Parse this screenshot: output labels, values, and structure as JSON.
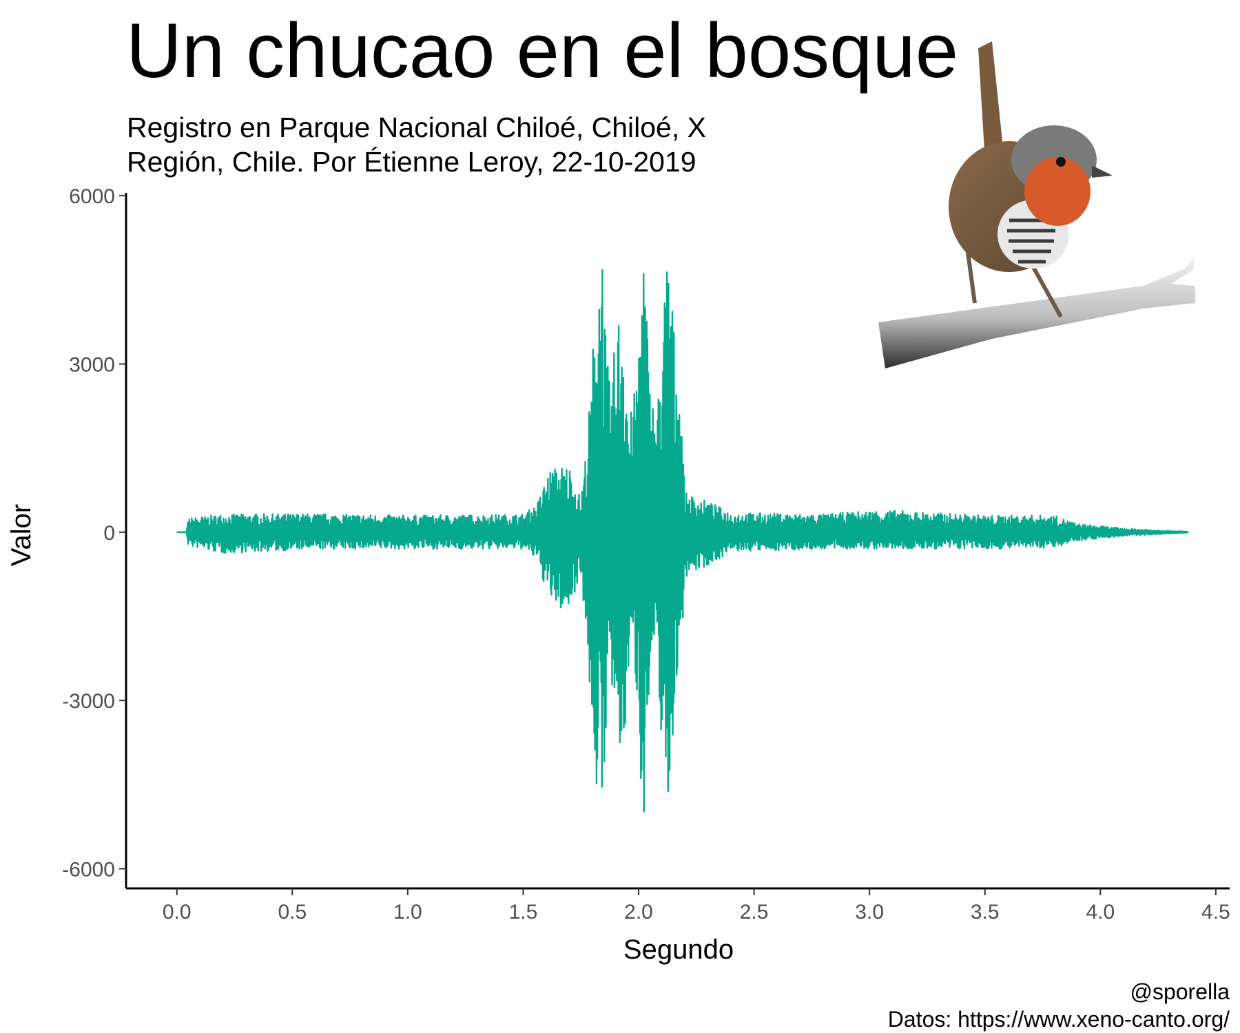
{
  "chart_data": {
    "type": "line",
    "title": "Un chucao en el bosque",
    "subtitle_lines": [
      "Registro en Parque Nacional Chiloé, Chiloé, X",
      "Región, Chile. Por Étienne Leroy, 22-10-2019"
    ],
    "caption_lines": [
      "@sporella",
      "Datos: https://www.xeno-canto.org/"
    ],
    "xlabel": "Segundo",
    "ylabel": "Valor",
    "xlim": [
      -0.22,
      4.56
    ],
    "ylim": [
      -6350,
      6050
    ],
    "x_ticks": [
      0.0,
      0.5,
      1.0,
      1.5,
      2.0,
      2.5,
      3.0,
      3.5,
      4.0,
      4.5
    ],
    "x_tick_labels": [
      "0.0",
      "0.5",
      "1.0",
      "1.5",
      "2.0",
      "2.5",
      "3.0",
      "3.5",
      "4.0",
      "4.5"
    ],
    "y_ticks": [
      6000,
      3000,
      0,
      -3000,
      -6000
    ],
    "y_tick_labels": [
      "6000",
      "3000",
      "0",
      "-3000",
      "-6000"
    ],
    "grid": false,
    "legend": "none",
    "series_color": "#06a98e",
    "series": [
      {
        "envelope": [
          {
            "x": 0.0,
            "max": 0,
            "min": 0
          },
          {
            "x": 0.04,
            "max": 0,
            "min": 0
          },
          {
            "x": 0.05,
            "max": 250,
            "min": -250
          },
          {
            "x": 0.2,
            "max": 320,
            "min": -380
          },
          {
            "x": 0.6,
            "max": 330,
            "min": -300
          },
          {
            "x": 1.0,
            "max": 300,
            "min": -300
          },
          {
            "x": 1.5,
            "max": 320,
            "min": -300
          },
          {
            "x": 1.56,
            "max": 500,
            "min": -500
          },
          {
            "x": 1.61,
            "max": 1100,
            "min": -1200
          },
          {
            "x": 1.66,
            "max": 1200,
            "min": -1400
          },
          {
            "x": 1.7,
            "max": 1200,
            "min": -1400
          },
          {
            "x": 1.75,
            "max": 600,
            "min": -700
          },
          {
            "x": 1.78,
            "max": 1800,
            "min": -2400
          },
          {
            "x": 1.82,
            "max": 4600,
            "min": -4800
          },
          {
            "x": 1.84,
            "max": 5600,
            "min": -5800
          },
          {
            "x": 1.86,
            "max": 3200,
            "min": -3300
          },
          {
            "x": 1.88,
            "max": 2500,
            "min": -2700
          },
          {
            "x": 1.9,
            "max": 3600,
            "min": -3800
          },
          {
            "x": 1.93,
            "max": 4400,
            "min": -4600
          },
          {
            "x": 1.96,
            "max": 2000,
            "min": -2200
          },
          {
            "x": 1.99,
            "max": 2700,
            "min": -2800
          },
          {
            "x": 2.02,
            "max": 5400,
            "min": -5300
          },
          {
            "x": 2.05,
            "max": 2600,
            "min": -2700
          },
          {
            "x": 2.08,
            "max": 2100,
            "min": -2300
          },
          {
            "x": 2.1,
            "max": 3600,
            "min": -3800
          },
          {
            "x": 2.13,
            "max": 5500,
            "min": -5200
          },
          {
            "x": 2.16,
            "max": 3100,
            "min": -2700
          },
          {
            "x": 2.18,
            "max": 2800,
            "min": -2600
          },
          {
            "x": 2.2,
            "max": 700,
            "min": -800
          },
          {
            "x": 2.3,
            "max": 550,
            "min": -600
          },
          {
            "x": 2.4,
            "max": 350,
            "min": -350
          },
          {
            "x": 2.8,
            "max": 320,
            "min": -300
          },
          {
            "x": 3.05,
            "max": 400,
            "min": -300
          },
          {
            "x": 3.5,
            "max": 300,
            "min": -300
          },
          {
            "x": 3.8,
            "max": 300,
            "min": -280
          },
          {
            "x": 3.9,
            "max": 150,
            "min": -150
          },
          {
            "x": 4.1,
            "max": 70,
            "min": -70
          },
          {
            "x": 4.38,
            "max": 10,
            "min": -10
          }
        ]
      }
    ]
  }
}
